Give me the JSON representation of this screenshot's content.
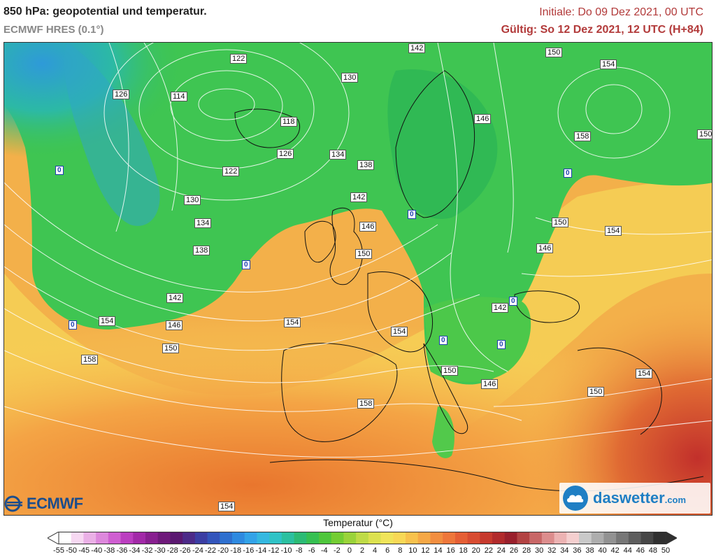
{
  "header": {
    "title": "850 hPa: geopotential und temperatur.",
    "model": "ECMWF HRES (0.1°)",
    "initial": "Initiale: Do 09 Dez 2021, 00 UTC",
    "valid": "Gültig: So 12 Dez 2021, 12 UTC (H+84)"
  },
  "map": {
    "isolines": [
      "122",
      "114",
      "126",
      "118",
      "130",
      "126",
      "134",
      "138",
      "122",
      "130",
      "134",
      "138",
      "142",
      "142",
      "146",
      "150",
      "154",
      "150",
      "146",
      "154",
      "158",
      "158",
      "154",
      "154",
      "142",
      "146",
      "150",
      "150",
      "146",
      "154",
      "154",
      "150",
      "146",
      "150",
      "142",
      "154",
      "150",
      "158"
    ],
    "zero_label": "0"
  },
  "logos": {
    "ecmwf": "ECMWF",
    "daswetter": "daswetter",
    "daswetter_suffix": ".com"
  },
  "colorbar": {
    "title": "Temperatur (°C)",
    "ticks": [
      "-55",
      "-50",
      "-45",
      "-40",
      "-38",
      "-36",
      "-34",
      "-32",
      "-30",
      "-28",
      "-26",
      "-24",
      "-22",
      "-20",
      "-18",
      "-16",
      "-14",
      "-12",
      "-10",
      "-8",
      "-6",
      "-4",
      "-2",
      "0",
      "2",
      "4",
      "6",
      "8",
      "10",
      "12",
      "14",
      "16",
      "18",
      "20",
      "22",
      "24",
      "26",
      "28",
      "30",
      "32",
      "34",
      "36",
      "38",
      "40",
      "42",
      "44",
      "46",
      "48",
      "50"
    ],
    "colors": [
      "#ffffff",
      "#f7d8f2",
      "#eab0e6",
      "#dd88dc",
      "#cf5fd1",
      "#bb3fc0",
      "#a22aa8",
      "#882090",
      "#6e1a7a",
      "#5a1870",
      "#4c2a88",
      "#3b3ea3",
      "#3355bb",
      "#2f70cf",
      "#2f8ae0",
      "#33a3e8",
      "#35b8e0",
      "#30c3c6",
      "#2cc0a0",
      "#2cbb75",
      "#36c052",
      "#4fc63c",
      "#74cd33",
      "#9ad33a",
      "#bfdb47",
      "#dce150",
      "#f0e45a",
      "#f8d856",
      "#f8c24d",
      "#f6a846",
      "#f28e40",
      "#ee773b",
      "#e55f35",
      "#d84c31",
      "#c63a2e",
      "#b12b2c",
      "#99202c",
      "#b24343",
      "#c86767",
      "#dc8d8d",
      "#ecb3b3",
      "#f5cfcf",
      "#c9c9c9",
      "#adadad",
      "#929292",
      "#777777",
      "#5e5e5e",
      "#464646",
      "#303030"
    ]
  }
}
